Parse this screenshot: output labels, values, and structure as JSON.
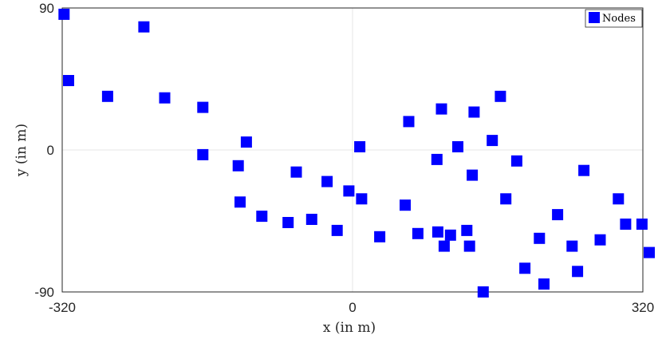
{
  "chart_data": {
    "type": "scatter",
    "title": "",
    "xlabel": "x (in m)",
    "ylabel": "y (in m)",
    "xlim": [
      -320,
      320
    ],
    "ylim": [
      -90,
      90
    ],
    "x_ticks": [
      "-320",
      "0",
      "320"
    ],
    "y_ticks": [
      "90",
      "0",
      "-90"
    ],
    "grid": "center lines only",
    "legend_position": "top-right",
    "marker": "square",
    "color": "#0000ff",
    "series": [
      {
        "name": "Nodes",
        "x": [
          -318,
          -313,
          -270,
          -230,
          -207,
          -165,
          -165,
          -126,
          -124,
          -117,
          -100,
          -71,
          -62,
          -45,
          -28,
          -17,
          -4,
          8,
          10,
          30,
          58,
          62,
          72,
          93,
          94,
          98,
          101,
          108,
          116,
          126,
          129,
          132,
          134,
          144,
          154,
          163,
          169,
          181,
          190,
          206,
          211,
          226,
          242,
          248,
          255,
          273,
          293,
          301,
          327,
          319
        ],
        "y": [
          86,
          44,
          34,
          78,
          33,
          27,
          -3,
          -10,
          -33,
          5,
          -42,
          -46,
          -14,
          -44,
          -20,
          -51,
          -26,
          2,
          -31,
          -55,
          -35,
          18,
          -53,
          -6,
          -52,
          26,
          -61,
          -54,
          2,
          -51,
          -61,
          -16,
          24,
          -90,
          6,
          34,
          -31,
          -7,
          -75,
          -56,
          -85,
          -41,
          -61,
          -77,
          -13,
          -57,
          -31,
          -47,
          -65,
          -47
        ]
      }
    ]
  }
}
